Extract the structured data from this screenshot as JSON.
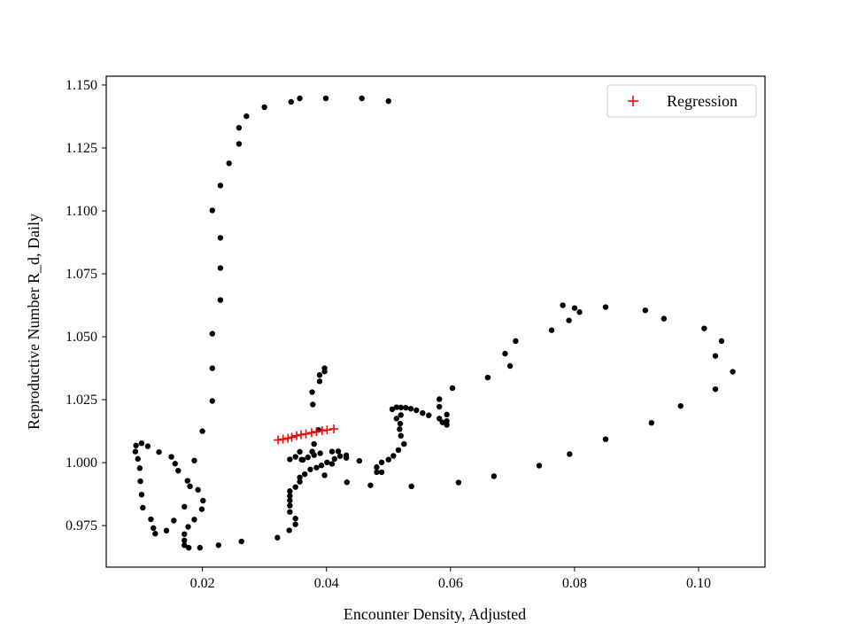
{
  "chart_data": {
    "type": "scatter",
    "xlabel": "Encounter Density, Adjusted",
    "ylabel": "Reproductive Number R_d, Daily",
    "xlim": [
      0.0045,
      0.1107
    ],
    "ylim": [
      0.9585,
      1.1535
    ],
    "x_ticks": [
      0.02,
      0.04,
      0.06,
      0.08,
      0.1
    ],
    "x_tick_labels": [
      "0.02",
      "0.04",
      "0.06",
      "0.08",
      "0.10"
    ],
    "y_ticks": [
      0.975,
      1.0,
      1.025,
      1.05,
      1.075,
      1.1,
      1.125,
      1.15
    ],
    "y_tick_labels": [
      "0.975",
      "1.000",
      "1.025",
      "1.050",
      "1.075",
      "1.100",
      "1.125",
      "1.150"
    ],
    "grid": false,
    "legend_position": "top-right",
    "colors": {
      "points": "#000000",
      "regression": "#ff0000"
    },
    "series": [
      {
        "marker": "dot",
        "color": "#000000",
        "points": [
          [
            0.0357,
            1.1447
          ],
          [
            0.0399,
            1.1447
          ],
          [
            0.0457,
            1.1447
          ],
          [
            0.05,
            1.1436
          ],
          [
            0.0343,
            1.1433
          ],
          [
            0.03,
            1.1412
          ],
          [
            0.0271,
            1.1376
          ],
          [
            0.0259,
            1.133
          ],
          [
            0.0259,
            1.1266
          ],
          [
            0.0243,
            1.1189
          ],
          [
            0.0229,
            1.1101
          ],
          [
            0.0216,
            1.1002
          ],
          [
            0.0229,
            1.0893
          ],
          [
            0.0229,
            1.0773
          ],
          [
            0.0229,
            1.0646
          ],
          [
            0.0216,
            1.0512
          ],
          [
            0.0216,
            1.0375
          ],
          [
            0.0216,
            1.0245
          ],
          [
            0.02,
            1.0125
          ],
          [
            0.0093,
            1.0068
          ],
          [
            0.0102,
            1.0077
          ],
          [
            0.0112,
            1.0065
          ],
          [
            0.0092,
            1.0044
          ],
          [
            0.0096,
            1.0015
          ],
          [
            0.0099,
            0.9978
          ],
          [
            0.01,
            0.9926
          ],
          [
            0.0102,
            0.9873
          ],
          [
            0.0104,
            0.9821
          ],
          [
            0.0117,
            0.9775
          ],
          [
            0.0121,
            0.974
          ],
          [
            0.0124,
            0.9718
          ],
          [
            0.013,
            1.0042
          ],
          [
            0.0142,
            0.973
          ],
          [
            0.015,
            1.0023
          ],
          [
            0.0156,
            0.9996
          ],
          [
            0.0161,
            0.9968
          ],
          [
            0.0171,
            0.9825
          ],
          [
            0.0176,
            0.9928
          ],
          [
            0.018,
            0.9906
          ],
          [
            0.0187,
            1.0008
          ],
          [
            0.0187,
            0.9774
          ],
          [
            0.0177,
            0.9745
          ],
          [
            0.0171,
            0.9716
          ],
          [
            0.0171,
            0.9691
          ],
          [
            0.0171,
            0.9672
          ],
          [
            0.0178,
            0.9662
          ],
          [
            0.0196,
            0.9662
          ],
          [
            0.0193,
            0.9892
          ],
          [
            0.0199,
            0.9815
          ],
          [
            0.0201,
            0.9849
          ],
          [
            0.0154,
            0.977
          ],
          [
            0.0226,
            0.9672
          ],
          [
            0.0263,
            0.9687
          ],
          [
            0.0321,
            0.9702
          ],
          [
            0.034,
            0.9731
          ],
          [
            0.035,
            0.9755
          ],
          [
            0.035,
            0.9778
          ],
          [
            0.0341,
            0.9804
          ],
          [
            0.0341,
            0.9829
          ],
          [
            0.0341,
            0.985
          ],
          [
            0.0341,
            0.9868
          ],
          [
            0.0341,
            0.9887
          ],
          [
            0.035,
            0.9903
          ],
          [
            0.0357,
            0.9924
          ],
          [
            0.0357,
            0.9941
          ],
          [
            0.0365,
            0.9954
          ],
          [
            0.0374,
            0.9973
          ],
          [
            0.0384,
            0.998
          ],
          [
            0.0392,
            0.9989
          ],
          [
            0.0401,
            1.0001
          ],
          [
            0.0413,
            1.0015
          ],
          [
            0.0422,
            1.0026
          ],
          [
            0.0432,
            1.0019
          ],
          [
            0.0419,
            1.0045
          ],
          [
            0.0409,
            1.0044
          ],
          [
            0.039,
            1.0037
          ],
          [
            0.038,
            1.003
          ],
          [
            0.037,
            1.0021
          ],
          [
            0.036,
            1.0012
          ],
          [
            0.0341,
            1.0013
          ],
          [
            0.035,
            1.0023
          ],
          [
            0.0357,
            1.0043
          ],
          [
            0.0362,
            1.0011
          ],
          [
            0.0377,
            1.0044
          ],
          [
            0.0387,
            1.013
          ],
          [
            0.0378,
            1.0231
          ],
          [
            0.0377,
            1.028
          ],
          [
            0.0389,
            1.0323
          ],
          [
            0.0389,
            1.0348
          ],
          [
            0.0397,
            1.0362
          ],
          [
            0.0397,
            1.0375
          ],
          [
            0.038,
            1.0074
          ],
          [
            0.0397,
            0.995
          ],
          [
            0.0409,
            0.9995
          ],
          [
            0.0432,
            1.0029
          ],
          [
            0.0433,
            0.9922
          ],
          [
            0.0453,
            1.0007
          ],
          [
            0.0471,
            0.991
          ],
          [
            0.0481,
            0.9962
          ],
          [
            0.0481,
            0.9982
          ],
          [
            0.0489,
            0.9962
          ],
          [
            0.0489,
            1.0001
          ],
          [
            0.05,
            1.0012
          ],
          [
            0.0508,
            1.0027
          ],
          [
            0.0516,
            1.005
          ],
          [
            0.0525,
            1.0074
          ],
          [
            0.052,
            1.0107
          ],
          [
            0.0518,
            1.0133
          ],
          [
            0.0519,
            1.0155
          ],
          [
            0.0513,
            1.0175
          ],
          [
            0.052,
            1.0189
          ],
          [
            0.0506,
            1.0212
          ],
          [
            0.0513,
            1.022
          ],
          [
            0.052,
            1.0219
          ],
          [
            0.0528,
            1.0218
          ],
          [
            0.0536,
            1.0214
          ],
          [
            0.0545,
            1.0208
          ],
          [
            0.0555,
            1.0197
          ],
          [
            0.0565,
            1.0188
          ],
          [
            0.0582,
            1.0252
          ],
          [
            0.0582,
            1.0222
          ],
          [
            0.0582,
            1.0175
          ],
          [
            0.0594,
            1.0191
          ],
          [
            0.0594,
            1.0165
          ],
          [
            0.0594,
            1.015
          ],
          [
            0.0587,
            1.016
          ],
          [
            0.0537,
            0.9906
          ],
          [
            0.0603,
            1.0296
          ],
          [
            0.0613,
            0.9921
          ],
          [
            0.066,
            1.0338
          ],
          [
            0.067,
            0.9946
          ],
          [
            0.0688,
            1.0433
          ],
          [
            0.0696,
            1.0384
          ],
          [
            0.0705,
            1.0483
          ],
          [
            0.0743,
            0.9988
          ],
          [
            0.0763,
            1.0526
          ],
          [
            0.0781,
            1.0625
          ],
          [
            0.0791,
            1.0565
          ],
          [
            0.0792,
            1.0034
          ],
          [
            0.08,
            1.0614
          ],
          [
            0.0808,
            1.0598
          ],
          [
            0.085,
            1.0618
          ],
          [
            0.085,
            1.0093
          ],
          [
            0.0914,
            1.0605
          ],
          [
            0.0924,
            1.0158
          ],
          [
            0.0944,
            1.0572
          ],
          [
            0.0971,
            1.0225
          ],
          [
            0.1009,
            1.0533
          ],
          [
            0.1027,
            1.0292
          ],
          [
            0.1027,
            1.0424
          ],
          [
            0.1037,
            1.0483
          ],
          [
            0.1055,
            1.0361
          ]
        ]
      },
      {
        "name": "Regression",
        "marker": "plus",
        "color": "#ff0000",
        "points": [
          [
            0.0322,
            1.009
          ],
          [
            0.033,
            1.0093
          ],
          [
            0.0338,
            1.0097
          ],
          [
            0.0344,
            1.0101
          ],
          [
            0.0352,
            1.0107
          ],
          [
            0.0359,
            1.0111
          ],
          [
            0.0367,
            1.0114
          ],
          [
            0.0376,
            1.0119
          ],
          [
            0.0384,
            1.0123
          ],
          [
            0.0393,
            1.0127
          ],
          [
            0.0401,
            1.013
          ],
          [
            0.0412,
            1.0134
          ]
        ]
      }
    ]
  }
}
